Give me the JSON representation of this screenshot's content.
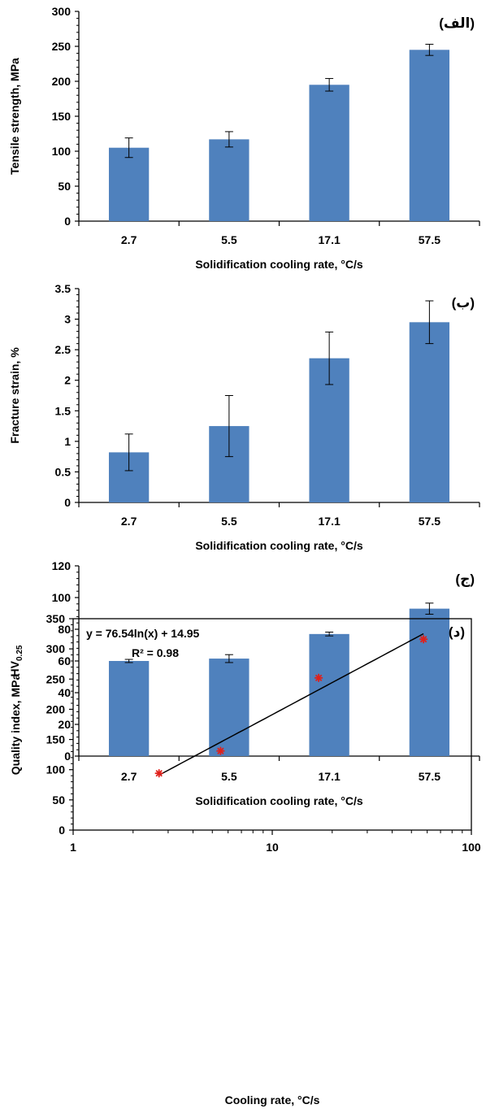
{
  "chart_data": [
    {
      "type": "bar",
      "panel_label": "(الف)",
      "categories": [
        "2.7",
        "5.5",
        "17.1",
        "57.5"
      ],
      "values": [
        105,
        117,
        195,
        245
      ],
      "errors": [
        14,
        11,
        9,
        8
      ],
      "ylabel": "Tensile strength, MPa",
      "xlabel": "Solidification cooling rate, °C/s",
      "ylim": [
        0,
        300
      ],
      "yticks": [
        "0",
        "50",
        "100",
        "150",
        "200",
        "250",
        "300"
      ],
      "bar_color": "#4F81BD"
    },
    {
      "type": "bar",
      "panel_label": "(ب)",
      "categories": [
        "2.7",
        "5.5",
        "17.1",
        "57.5"
      ],
      "values": [
        0.82,
        1.25,
        2.36,
        2.95
      ],
      "errors": [
        0.3,
        0.5,
        0.43,
        0.35
      ],
      "ylabel": "Fracture strain, %",
      "xlabel": "Solidification cooling rate, °C/s",
      "ylim": [
        0,
        3.5
      ],
      "yticks": [
        "0",
        "0.5",
        "1",
        "1.5",
        "2",
        "2.5",
        "3",
        "3.5"
      ],
      "bar_color": "#4F81BD"
    },
    {
      "type": "bar",
      "panel_label": "(ج)",
      "categories": [
        "2.7",
        "5.5",
        "17.1",
        "57.5"
      ],
      "values": [
        60,
        61.5,
        77,
        93
      ],
      "errors": [
        1,
        2.5,
        1.2,
        3.5
      ],
      "ylabel_main": "HV",
      "ylabel_sub": "0.25",
      "xlabel": "Solidification cooling rate, °C/s",
      "ylim": [
        0,
        120
      ],
      "yticks": [
        "0",
        "20",
        "40",
        "60",
        "80",
        "100",
        "120"
      ],
      "bar_color": "#4F81BD"
    },
    {
      "type": "scatter",
      "panel_label": "(د)",
      "x": [
        2.7,
        5.5,
        17.1,
        57.5
      ],
      "y": [
        94,
        131,
        252,
        316
      ],
      "xscale": "log",
      "xlim": [
        1,
        100
      ],
      "xticks": [
        "1",
        "10",
        "100"
      ],
      "ylim": [
        0,
        350
      ],
      "yticks": [
        "0",
        "50",
        "100",
        "150",
        "200",
        "250",
        "300",
        "350"
      ],
      "ylabel": "Quality index, MPa",
      "xlabel": "Cooling rate, °C/s",
      "trendline": {
        "a": 76.54,
        "b": 14.95,
        "x_from": 2.7,
        "x_to": 57.5
      },
      "equation": "y = 76.54ln(x) + 14.95",
      "r2": "R² = 0.98",
      "marker_color": "#E0201B"
    }
  ]
}
